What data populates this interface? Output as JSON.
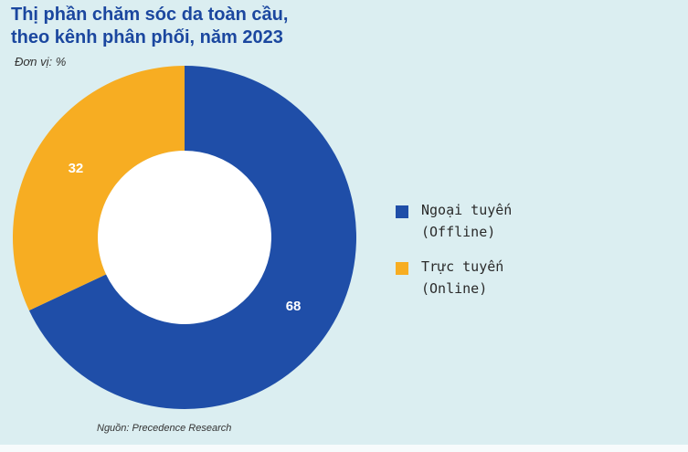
{
  "title_lines": [
    "Thị phần chăm sóc da toàn cầu,",
    "theo kênh phân phối, năm 2023"
  ],
  "unit": "Đơn vị: %",
  "source": "Nguồn: Precedence Research",
  "colors": {
    "background": "#dbeef1",
    "title": "#1b479f",
    "offline": "#1f4ea8",
    "online": "#f7ad22",
    "hole": "#ffffff"
  },
  "legend": [
    {
      "line1": "Ngoại tuyến",
      "line2": "(Offline)",
      "color": "#1f4ea8"
    },
    {
      "line1": "Trực tuyến",
      "line2": "(Online)",
      "color": "#f7ad22"
    }
  ],
  "chart_data": {
    "type": "pie",
    "title": "Thị phần chăm sóc da toàn cầu, theo kênh phân phối, năm 2023",
    "unit": "%",
    "donut": true,
    "start": "top (12 o'clock), clockwise",
    "legend_position": "right",
    "categories": [
      "Ngoại tuyến (Offline)",
      "Trực tuyến (Online)"
    ],
    "values": [
      68,
      32
    ],
    "colors": [
      "#1f4ea8",
      "#f7ad22"
    ],
    "data_labels": [
      "68",
      "32"
    ]
  }
}
